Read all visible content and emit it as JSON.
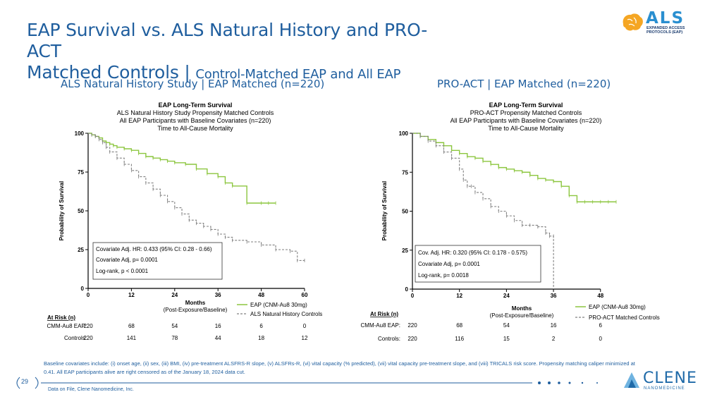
{
  "title": {
    "main_line1": "EAP Survival vs. ALS Natural History and PRO-ACT",
    "main_line2": "Matched Controls | ",
    "subtitle": "Control-Matched EAP and All EAP"
  },
  "logo": {
    "text": "ALS",
    "tagline": "EXPANDED ACCESS PROTOCOLS (EAP)"
  },
  "colors": {
    "accent": "#1f5e9e",
    "eap_series": "#8cc63f",
    "control_series": "#808080"
  },
  "footnote": "Baseline covariates include: (i) onset age, (ii) sex, (iii) BMI, (iv) pre-treatment ALSFRS-R slope, (v) ALSFRs-R, (vi) vital capacity (% predicted), (vii) vital capacity pre-treatment slope, and (viii) TRICALS risk score. Propensity matching caliper minimized at 0.41. All EAP participants alive are right censored as of the January 18, 2024 data cut.",
  "footer": {
    "page_number": "29",
    "source": "Data on File, Clene Nanomedicine, Inc.",
    "brand": "CLENE",
    "brand_sub": "NANOMEDICINE"
  },
  "chart_data": [
    {
      "type": "line",
      "section_title": "ALS Natural History Study | EAP Matched (n=220)",
      "title": "EAP Long-Term Survival",
      "subtitle_lines": [
        "ALS Natural History Study Propensity Matched Controls",
        "All EAP Participants with Baseline Covariates (n=220)",
        "Time to All-Cause Mortality"
      ],
      "xlabel": "Months",
      "xlabel_sub": "(Post-Exposure/Baseline)",
      "ylabel": "Probability of Survival",
      "xlim": [
        0,
        60
      ],
      "ylim": [
        0,
        100
      ],
      "xticks": [
        0,
        12,
        24,
        36,
        48,
        60
      ],
      "yticks": [
        0,
        25,
        50,
        75,
        100
      ],
      "series": [
        {
          "name": "EAP (CNM-Au8 30mg)",
          "color": "#8cc63f",
          "dash": false,
          "x": [
            0,
            1,
            2,
            3,
            4,
            5,
            6,
            7,
            8,
            10,
            12,
            14,
            16,
            18,
            20,
            22,
            24,
            27,
            30,
            33,
            36,
            38,
            40,
            44,
            48,
            50,
            52
          ],
          "y": [
            100,
            99,
            98,
            97,
            95,
            94,
            93,
            92,
            91,
            90,
            89,
            87,
            85,
            84,
            83,
            82,
            81,
            80,
            77,
            74,
            72,
            68,
            66,
            55,
            55,
            55,
            55
          ]
        },
        {
          "name": "ALS Natural History Controls",
          "color": "#808080",
          "dash": true,
          "x": [
            0,
            1,
            2,
            3,
            4,
            5,
            6,
            8,
            10,
            12,
            14,
            16,
            18,
            20,
            22,
            24,
            26,
            28,
            30,
            32,
            34,
            36,
            38,
            40,
            44,
            48,
            52,
            56,
            58,
            60
          ],
          "y": [
            100,
            99,
            98,
            96,
            94,
            91,
            88,
            84,
            80,
            76,
            72,
            68,
            64,
            60,
            56,
            52,
            48,
            44,
            42,
            40,
            38,
            35,
            33,
            31,
            30,
            28,
            25,
            24,
            18,
            18
          ]
        }
      ],
      "annotations": [
        "Covariate Adj. HR: 0.433 (95% CI: 0.28 - 0.66)",
        "Covariate Adj, p= 0.0001",
        "Log-rank, p < 0.0001"
      ],
      "at_risk": {
        "title": "At Risk (n)",
        "rows": [
          {
            "label": "CMM-Au8 EAP:",
            "values": [
              "220",
              "68",
              "54",
              "16",
              "6",
              "0"
            ]
          },
          {
            "label": "Controls:",
            "values": [
              "220",
              "141",
              "78",
              "44",
              "18",
              "12"
            ]
          }
        ]
      }
    },
    {
      "type": "line",
      "section_title": "PRO-ACT | EAP Matched (n=220)",
      "title": "EAP Long-Term Survival",
      "subtitle_lines": [
        "PRO-ACT Propensity Matched Controls",
        "All EAP Participants with Baseline Covariates (n=220)",
        "Time to All-Cause Mortality"
      ],
      "xlabel": "Months",
      "xlabel_sub": "(Post-Exposure/Baseline)",
      "ylabel": "Probability of Survival",
      "xlim": [
        0,
        52
      ],
      "ylim": [
        0,
        100
      ],
      "xticks": [
        0,
        12,
        24,
        36,
        48
      ],
      "yticks": [
        0,
        25,
        50,
        75,
        100
      ],
      "series": [
        {
          "name": "EAP (CNM-Au8 30mg)",
          "color": "#8cc63f",
          "dash": false,
          "x": [
            0,
            2,
            4,
            6,
            8,
            10,
            12,
            14,
            16,
            18,
            20,
            22,
            24,
            26,
            28,
            30,
            32,
            34,
            36,
            38,
            40,
            42,
            44,
            46,
            48,
            50,
            52
          ],
          "y": [
            100,
            98,
            96,
            94,
            92,
            89,
            87,
            85,
            84,
            82,
            80,
            78,
            77,
            76,
            75,
            73,
            71,
            70,
            69,
            66,
            60,
            56,
            56,
            56,
            56,
            56,
            56
          ]
        },
        {
          "name": "PRO-ACT Matched Controls",
          "color": "#808080",
          "dash": true,
          "x": [
            0,
            2,
            4,
            6,
            8,
            10,
            12,
            13,
            14,
            15,
            16,
            18,
            20,
            22,
            24,
            26,
            28,
            30,
            32,
            34,
            35,
            36,
            36.01
          ],
          "y": [
            100,
            98,
            95,
            92,
            88,
            84,
            77,
            70,
            66,
            66,
            62,
            58,
            53,
            50,
            47,
            44,
            41,
            41,
            40,
            36,
            34,
            34,
            0
          ]
        }
      ],
      "annotations": [
        "Cov. Adj. HR: 0.320 (95% CI: 0.178 - 0.575)",
        "Covariate Adj, p= 0.0001",
        "Log-rank, p= 0.0018"
      ],
      "at_risk": {
        "title": "At Risk (n)",
        "rows": [
          {
            "label": "CMM-Au8 EAP:",
            "values": [
              "220",
              "68",
              "54",
              "16",
              "6"
            ]
          },
          {
            "label": "Controls:",
            "values": [
              "220",
              "116",
              "15",
              "2",
              "0"
            ]
          }
        ]
      }
    }
  ]
}
